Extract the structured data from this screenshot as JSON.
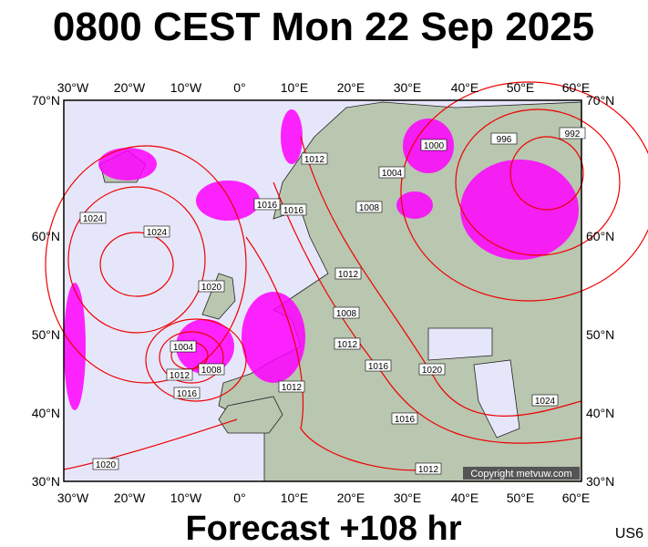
{
  "title": "0800 CEST Mon 22 Sep 2025",
  "footer": "Forecast +108 hr",
  "code": "US6",
  "copyright": "Copyright metvuw.com",
  "lon_labels": [
    "30°W",
    "20°W",
    "10°W",
    "0°",
    "10°E",
    "20°E",
    "30°E",
    "40°E",
    "50°E",
    "60°E"
  ],
  "lat_labels": [
    "70°N",
    "60°N",
    "50°N",
    "40°N",
    "30°N"
  ],
  "isobar_labels": [
    "1000",
    "996",
    "992",
    "1012",
    "1004",
    "1024",
    "1024",
    "1016",
    "1016",
    "1008",
    "1012",
    "1020",
    "1008",
    "1004",
    "1012",
    "1012",
    "1008",
    "1016",
    "1020",
    "1016",
    "1012",
    "1024",
    "1016",
    "1012",
    "1020"
  ]
}
